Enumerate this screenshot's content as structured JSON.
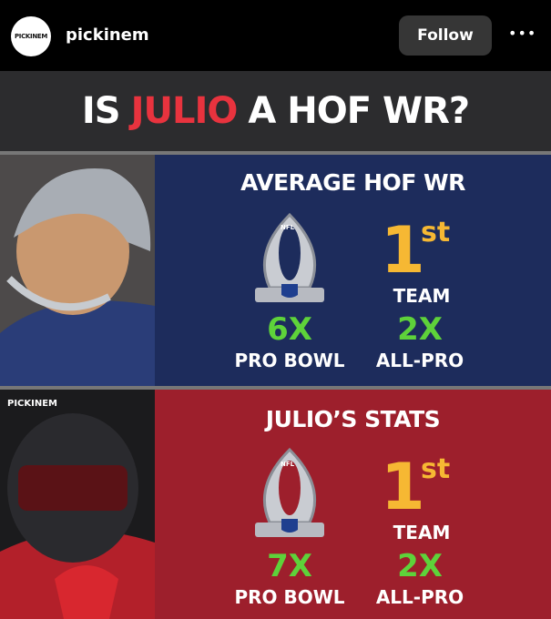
{
  "header": {
    "avatar_text": "PICKINEM",
    "username": "pickinem",
    "follow": "Follow",
    "more": "•••"
  },
  "post": {
    "title": {
      "before": "IS",
      "highlight": "JULIO",
      "after": "A HOF WR?"
    },
    "watermark": "PICKINEM",
    "panels": [
      {
        "heading": "AVERAGE HOF WR",
        "trophy_logo": "NFL",
        "team_rank": "1",
        "team_rank_suffix": "st",
        "team_label": "TEAM",
        "pro_bowl_count": "6X",
        "pro_bowl_label": "PRO BOWL",
        "all_pro_count": "2X",
        "all_pro_label": "ALL-PRO"
      },
      {
        "heading": "JULIO’S STATS",
        "trophy_logo": "NFL",
        "team_rank": "1",
        "team_rank_suffix": "st",
        "team_label": "TEAM",
        "pro_bowl_count": "7X",
        "pro_bowl_label": "PRO BOWL",
        "all_pro_count": "2X",
        "all_pro_label": "ALL-PRO"
      }
    ]
  }
}
